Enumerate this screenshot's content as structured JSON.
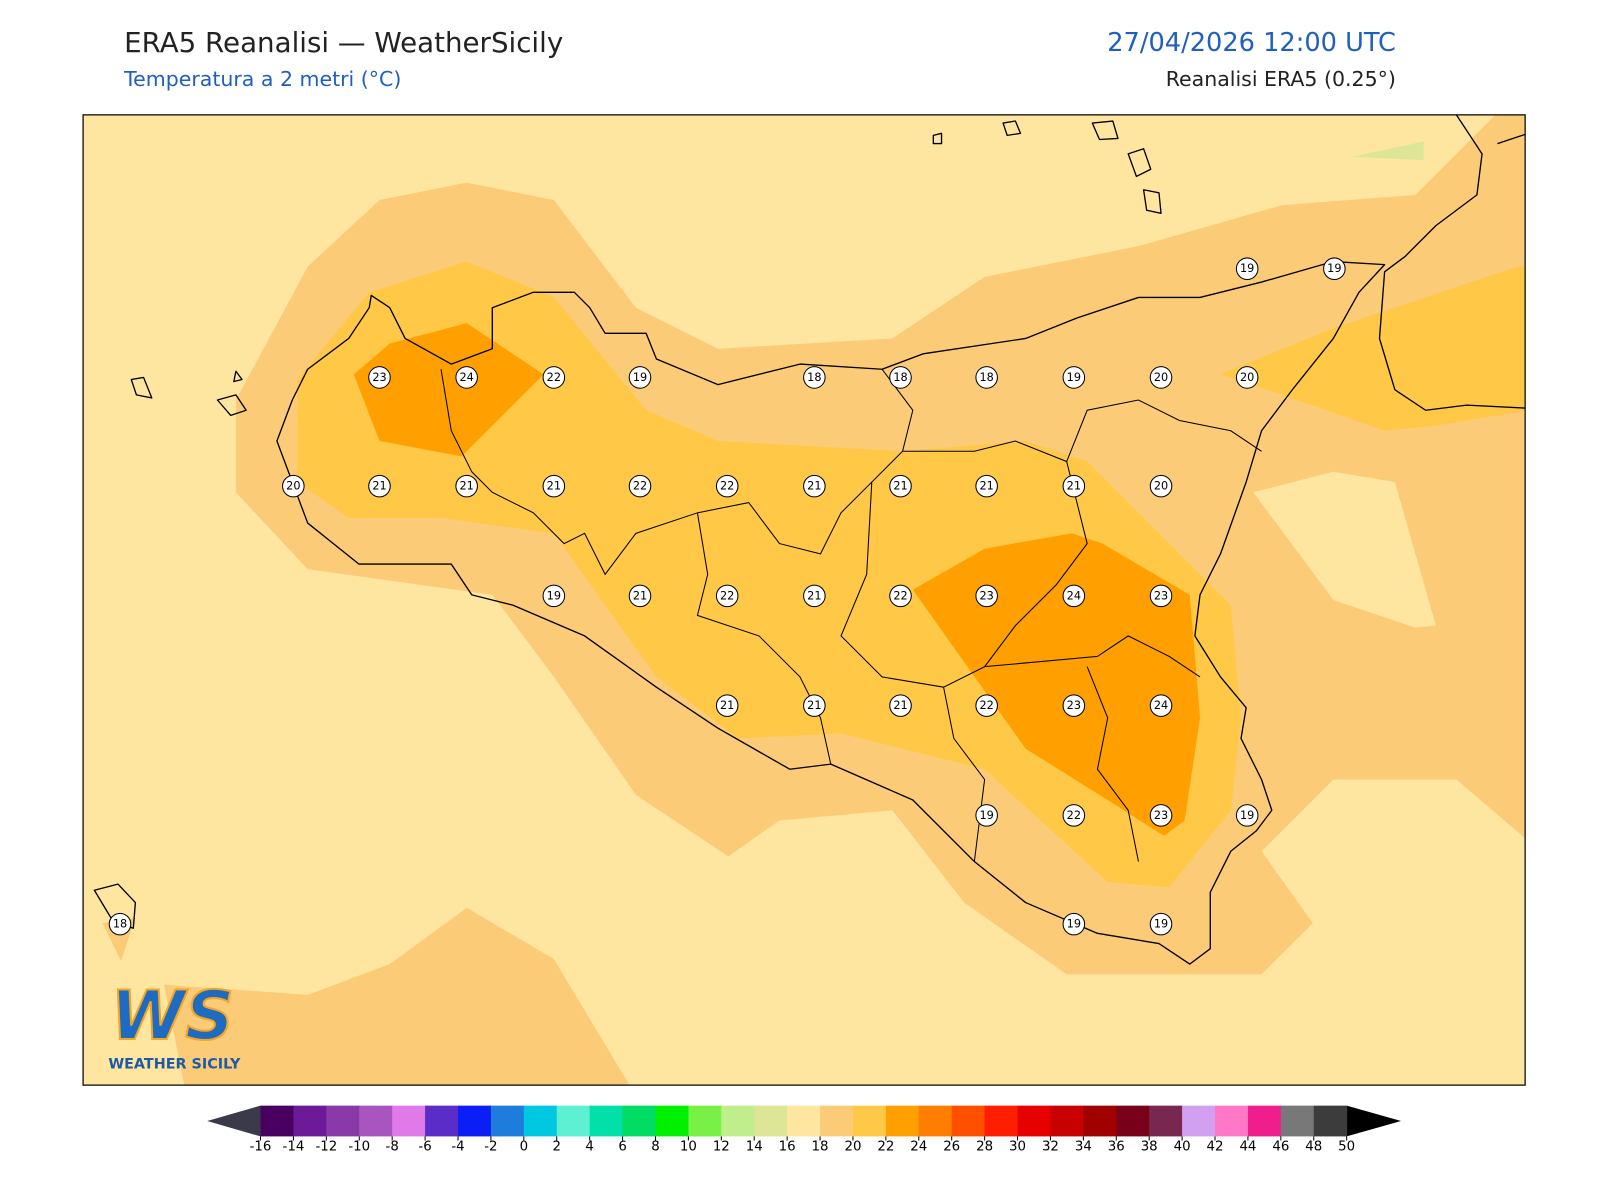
{
  "header": {
    "title": "ERA5 Reanalisi — WeatherSicily",
    "subtitle": "Temperatura a 2 metri (°C)",
    "datetime": "27/04/2026 12:00 UTC",
    "source": "Reanalisi ERA5 (0.25°)"
  },
  "map": {
    "stations": [
      19,
      19,
      23,
      24,
      22,
      19,
      18,
      18,
      18,
      19,
      20,
      20,
      20,
      21,
      21,
      21,
      22,
      22,
      21,
      21,
      21,
      21,
      20,
      19,
      21,
      22,
      21,
      22,
      23,
      24,
      23,
      21,
      21,
      21,
      22,
      23,
      24,
      19,
      22,
      23,
      19,
      18,
      19,
      19
    ]
  },
  "logo": {
    "mark": "WS",
    "name": "WEATHER SICILY"
  },
  "colorbar": {
    "ticks": [
      -16,
      -14,
      -12,
      -10,
      -8,
      -6,
      -4,
      -2,
      0,
      2,
      4,
      6,
      8,
      10,
      12,
      14,
      16,
      18,
      20,
      22,
      24,
      26,
      28,
      30,
      32,
      34,
      36,
      38,
      40,
      42,
      44,
      46,
      48,
      50
    ],
    "colors": [
      "#4a0060",
      "#6c1a98",
      "#8a3aa8",
      "#a855c0",
      "#e07ae8",
      "#5a2dc8",
      "#0a1ef5",
      "#1e7ddc",
      "#00c8e0",
      "#5ef0d2",
      "#00e0a8",
      "#00dc64",
      "#00f000",
      "#78f046",
      "#c0ee8c",
      "#dce696",
      "#ffe6a0",
      "#fbcb78",
      "#ffc846",
      "#ffa000",
      "#ff7d00",
      "#ff5000",
      "#ff1e00",
      "#e60000",
      "#c80000",
      "#a00000",
      "#780018",
      "#782850",
      "#d2a0f0",
      "#ff78c8",
      "#f01e8c",
      "#787878",
      "#3c3c3c"
    ],
    "under": "#3a3a4a",
    "over": "#000000"
  }
}
